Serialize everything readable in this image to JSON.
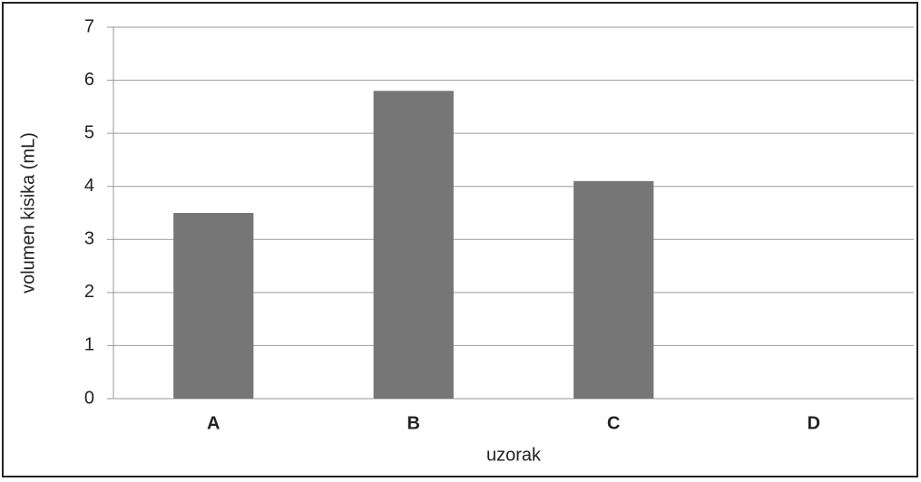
{
  "chart_data": {
    "type": "bar",
    "x_label": "uzorak",
    "y_label": "volumen kisika (mL)",
    "categories": [
      "A",
      "B",
      "C",
      "D"
    ],
    "values": [
      3.5,
      5.8,
      4.1,
      0
    ],
    "color": "#777676",
    "ylim": [
      0,
      7
    ],
    "yticks": [
      0,
      1,
      2,
      3,
      4,
      5,
      6,
      7
    ],
    "grid": true
  }
}
